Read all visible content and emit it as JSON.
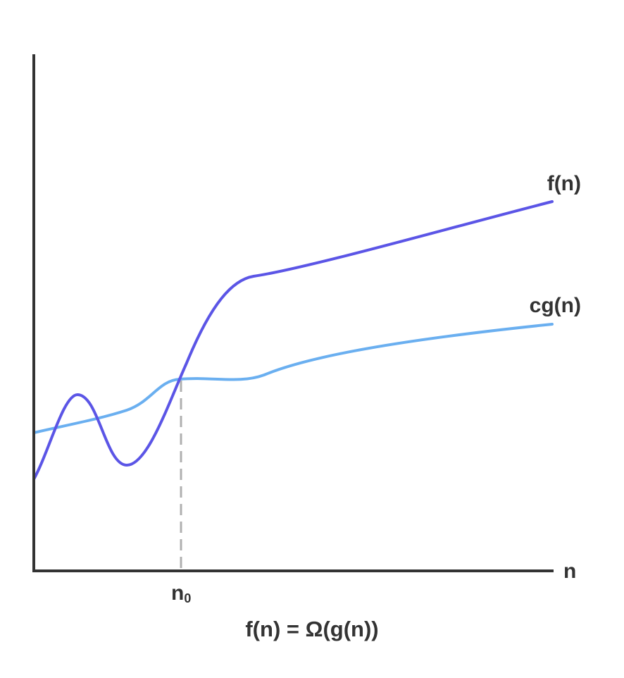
{
  "curves": {
    "f": {
      "label": "f(n)",
      "color": "#5b55e6"
    },
    "cg": {
      "label": "cg(n)",
      "color": "#6aaff0"
    }
  },
  "axes": {
    "x_label": "n",
    "color": "#333333"
  },
  "threshold": {
    "label_base": "n",
    "label_sub": "0",
    "line_color": "#b0b0b0",
    "line_style": "dashed"
  },
  "caption": "f(n) = Ω(g(n))"
}
